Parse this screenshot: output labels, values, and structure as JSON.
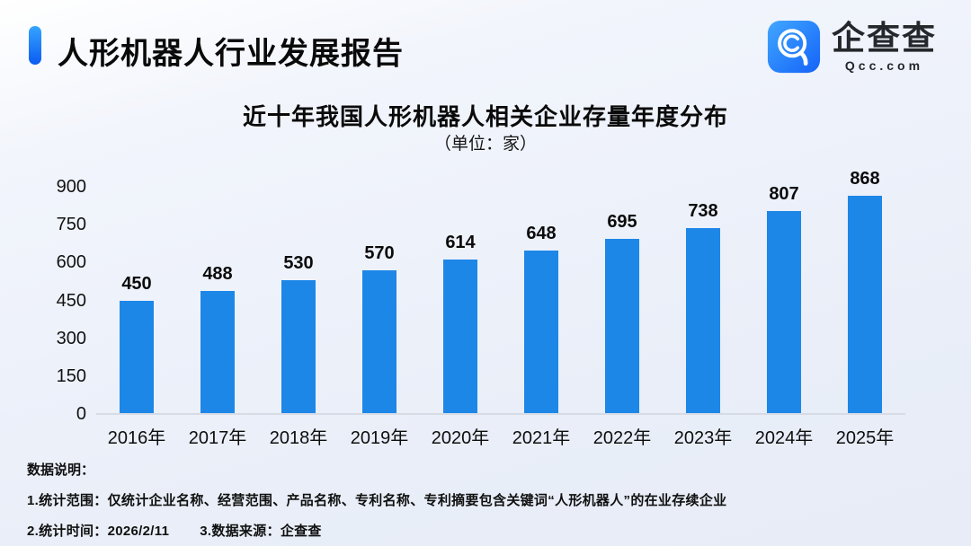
{
  "header": {
    "title": "人形机器人行业发展报告",
    "accent_gradient_top": "#35a4ff",
    "accent_gradient_bottom": "#0b5cf2"
  },
  "logo": {
    "icon": "qcc-magnifier-icon",
    "brand": "企查查",
    "domain": "Qcc.com",
    "tile_gradient_top": "#41a7ff",
    "tile_gradient_bottom": "#1463f8"
  },
  "chart": {
    "title": "近十年我国人形机器人相关企业存量年度分布",
    "subtitle": "（单位：家）"
  },
  "chart_data": {
    "type": "bar",
    "title": "近十年我国人形机器人相关企业存量年度分布",
    "unit_label": "（单位：家）",
    "categories": [
      "2016年",
      "2017年",
      "2018年",
      "2019年",
      "2020年",
      "2021年",
      "2022年",
      "2023年",
      "2024年",
      "2025年"
    ],
    "values": [
      450,
      488,
      530,
      570,
      614,
      648,
      695,
      738,
      807,
      868
    ],
    "xlabel": "",
    "ylabel": "",
    "ylim": [
      0,
      900
    ],
    "yticks": [
      0,
      150,
      300,
      450,
      600,
      750,
      900
    ],
    "grid": false,
    "legend": "none",
    "data_labels": true,
    "bar_color": "#1d87e8"
  },
  "footer": {
    "heading": "数据说明：",
    "note1": "1.统计范围：仅统计企业名称、经营范围、产品名称、专利名称、专利摘要包含关键词“人形机器人”的在业存续企业",
    "note2": "2.统计时间：2026/2/11",
    "note3": "3.数据来源：企查查"
  }
}
